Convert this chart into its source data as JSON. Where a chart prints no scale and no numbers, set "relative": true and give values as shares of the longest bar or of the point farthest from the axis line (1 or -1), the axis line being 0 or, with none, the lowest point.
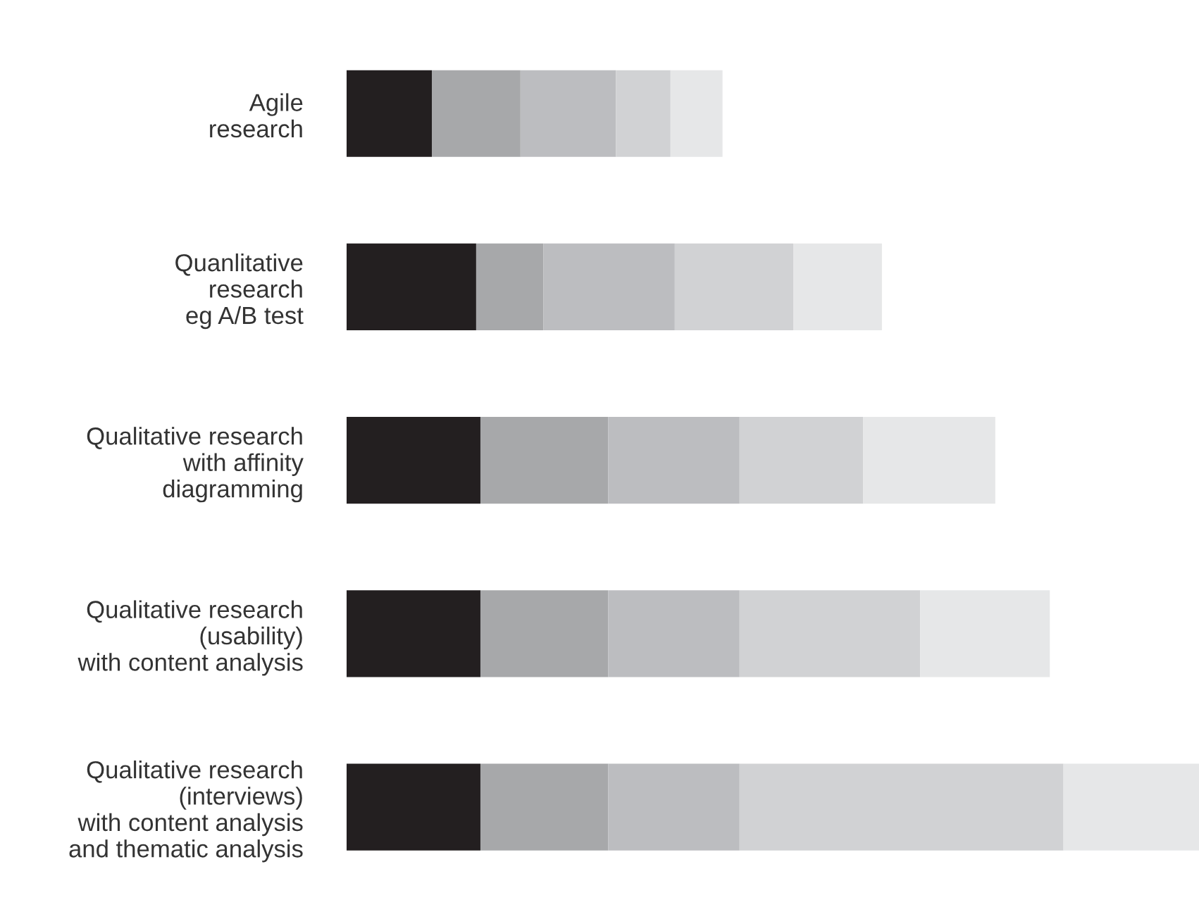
{
  "chart_data": {
    "type": "bar",
    "orientation": "horizontal",
    "stacked": true,
    "relative": true,
    "categories": [
      "Agile\nresearch",
      "Quanlitative\nresearch\neg A/B test",
      "Qualitative research\nwith affinity\ndiagramming",
      "Qualitative research\n(usability)\nwith content analysis",
      "Qualitative research\n(interviews)\nwith content analysis\nand thematic analysis"
    ],
    "series": [
      {
        "color": "#231f20",
        "values": [
          0.1,
          0.152,
          0.157,
          0.157,
          0.157
        ]
      },
      {
        "color": "#a7a8aa",
        "values": [
          0.104,
          0.079,
          0.15,
          0.15,
          0.15
        ]
      },
      {
        "color": "#bcbdc0",
        "values": [
          0.112,
          0.154,
          0.154,
          0.154,
          0.154
        ]
      },
      {
        "color": "#d1d2d4",
        "values": [
          0.064,
          0.139,
          0.145,
          0.212,
          0.38
        ]
      },
      {
        "color": "#e6e7e8",
        "values": [
          0.061,
          0.104,
          0.155,
          0.152,
          0.159
        ]
      }
    ]
  }
}
